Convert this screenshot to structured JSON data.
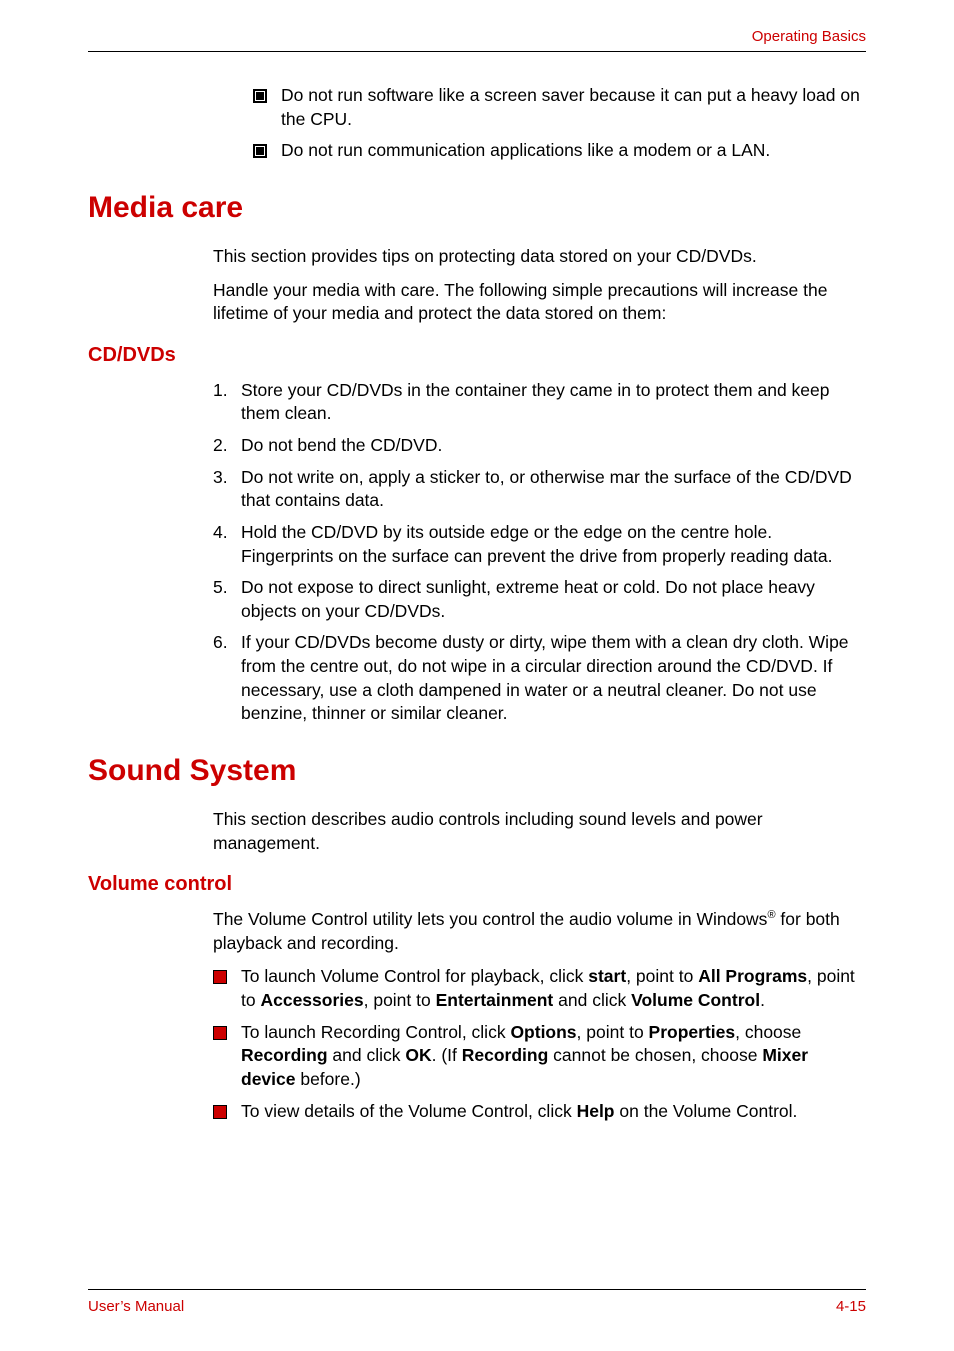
{
  "header": {
    "label": "Operating Basics"
  },
  "top_bullets": [
    "Do not run software like a screen saver because it can put a heavy load on the CPU.",
    "Do not run communication applications like a modem or a LAN."
  ],
  "media_care": {
    "title": "Media care",
    "intro1": "This section provides tips on protecting data stored on your CD/DVDs.",
    "intro2": "Handle your media with care. The following simple precautions will increase the lifetime of your media and protect the data stored on them:",
    "cd_dvds": {
      "title": "CD/DVDs",
      "items": [
        "Store your CD/DVDs in the container they came in to protect them and keep them clean.",
        "Do not bend the CD/DVD.",
        "Do not write on, apply a sticker to, or otherwise mar the surface of the CD/DVD that contains data.",
        "Hold the CD/DVD by its outside edge or the edge on the centre hole. Fingerprints on the surface can prevent the drive from properly reading data.",
        "Do not expose to direct sunlight, extreme heat or cold. Do not place heavy objects on your CD/DVDs.",
        "If your CD/DVDs become dusty or dirty, wipe them with a clean dry cloth. Wipe from the centre out, do not wipe in a circular direction around the CD/DVD. If necessary, use a cloth dampened in water or a neutral cleaner. Do not use benzine, thinner or similar cleaner."
      ]
    }
  },
  "sound_system": {
    "title": "Sound System",
    "intro": "This section describes audio controls including sound levels and power management.",
    "volume": {
      "title": "Volume control",
      "intro_pre": "The Volume Control utility lets you control the audio volume in Windows",
      "intro_sup": "®",
      "intro_post": " for both playback and recording.",
      "bullets_html": [
        "To launch Volume Control for playback, click <b>start</b>, point to <b>All Programs</b>, point to <b>Accessories</b>, point to <b>Entertainment</b> and click <b>Volume Control</b>.",
        "To launch Recording Control, click <b>Options</b>, point to <b>Properties</b>, choose <b>Recording</b> and click <b>OK</b>. (If <b>Recording</b> cannot be chosen, choose <b>Mixer device</b> before.)",
        "To view details of the Volume Control, click <b>Help</b> on the Volume Control."
      ]
    }
  },
  "footer": {
    "left": "User’s Manual",
    "right": "4-15"
  },
  "colors": {
    "accent": "#cc0000",
    "text": "#000000",
    "background": "#ffffff"
  }
}
